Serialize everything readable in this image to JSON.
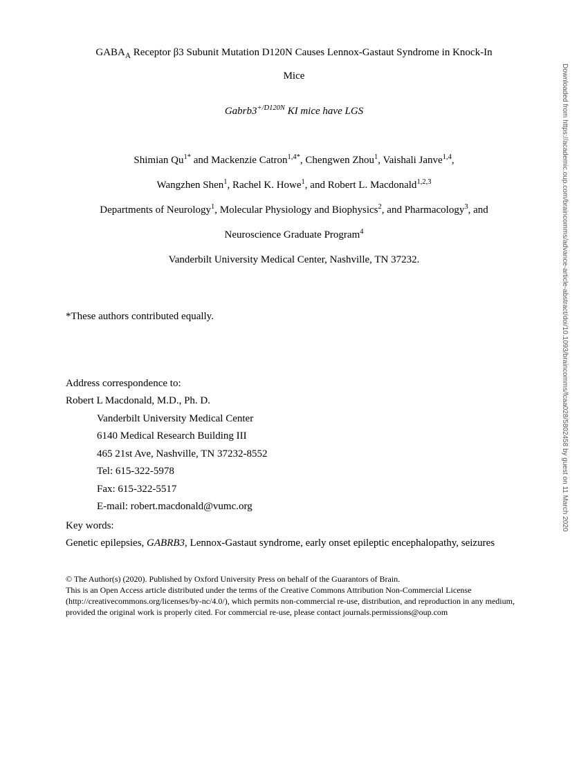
{
  "title": {
    "part1_pre": "GABA",
    "part1_sub": "A",
    "part1_post": " Receptor β3 Subunit Mutation D120N Causes Lennox-Gastaut Syndrome in Knock-In",
    "part2": "Mice"
  },
  "subtitle": {
    "gene_pre": "Gabrb3",
    "gene_sup": "+/D120N",
    "rest": " KI mice have LGS"
  },
  "authors": {
    "a1_name": "Shimian Qu",
    "a1_sup": "1*",
    "sep1": " and ",
    "a2_name": "Mackenzie Catron",
    "a2_sup": "1,4*",
    "sep2": ", ",
    "a3_name": "Chengwen Zhou",
    "a3_sup": "1",
    "sep3": ", ",
    "a4_name": "Vaishali Janve",
    "a4_sup": "1,4",
    "sep4": ",",
    "a5_name": "Wangzhen Shen",
    "a5_sup": "1",
    "sep5": ", ",
    "a6_name": "Rachel K. Howe",
    "a6_sup": "1",
    "sep6": ", and ",
    "a7_name": "Robert L. Macdonald",
    "a7_sup": "1,2,3"
  },
  "affiliations": {
    "line1_pre": "Departments of Neurology",
    "line1_sup1": "1",
    "line1_mid1": ", Molecular Physiology and Biophysics",
    "line1_sup2": "2",
    "line1_mid2": ", and Pharmacology",
    "line1_sup3": "3",
    "line1_post": ", and",
    "line2_pre": "Neuroscience Graduate Program",
    "line2_sup": "4",
    "line3": "Vanderbilt University Medical Center, Nashville, TN 37232."
  },
  "equal_note": "*These authors contributed equally.",
  "correspondence": {
    "heading": "Address correspondence to:",
    "name": "Robert L Macdonald, M.D., Ph. D.",
    "lines": [
      "Vanderbilt University Medical Center",
      "6140 Medical Research Building III",
      "465 21st Ave, Nashville, TN 37232-8552",
      "Tel: 615-322-5978",
      "Fax: 615-322-5517",
      "E-mail: robert.macdonald@vumc.org"
    ]
  },
  "keywords": {
    "heading": "Key words:",
    "pre": "Genetic epilepsies, ",
    "gene": "GABRB3",
    "post": ", Lennox-Gastaut syndrome, early onset epileptic encephalopathy, seizures"
  },
  "footer": {
    "line1": "© The Author(s) (2020). Published by Oxford University Press on behalf of the Guarantors of Brain.",
    "line2": "This is an Open Access article distributed under the terms of the Creative Commons Attribution Non-Commercial License (http://creativecommons.org/licenses/by-nc/4.0/), which permits non-commercial re-use, distribution, and reproduction in any medium, provided the original work is properly cited. For commercial re-use, please contact journals.permissions@oup.com"
  },
  "side_note": "Downloaded from https://academic.oup.com/braincomms/advance-article-abstract/doi/10.1093/braincomms/fcaa028/5802458 by guest on 11 March 2020"
}
